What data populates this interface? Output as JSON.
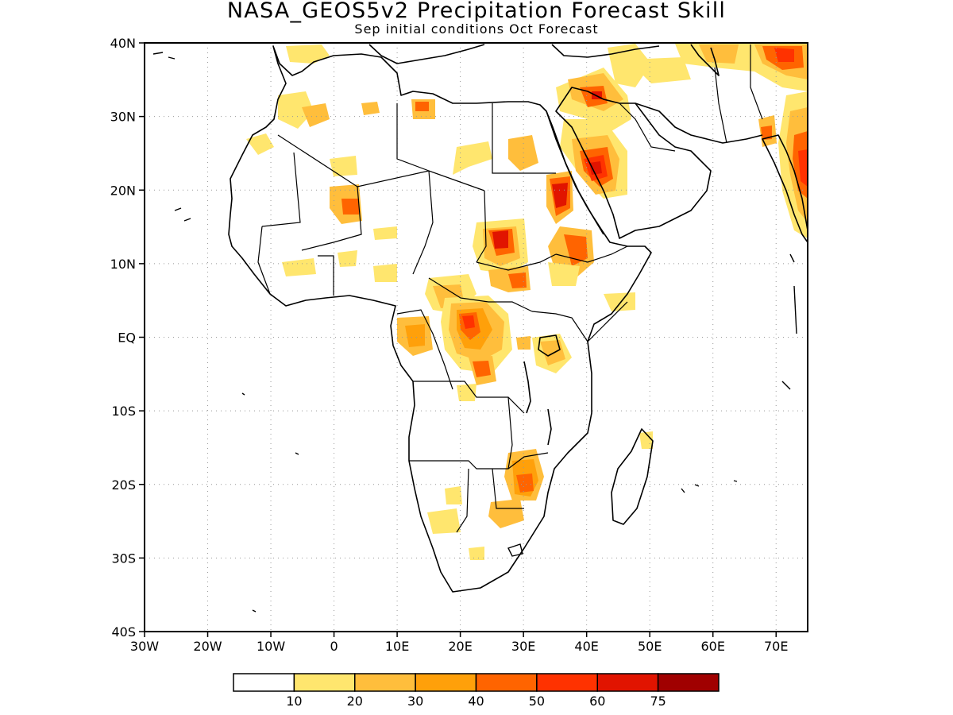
{
  "title": "NASA_GEOS5v2 Precipitation Forecast Skill",
  "subtitle": "Sep initial conditions  Oct Forecast",
  "map": {
    "lon_range": [
      -30,
      75
    ],
    "lat_range": [
      -40,
      40
    ],
    "lat_ticks": [
      "40N",
      "30N",
      "20N",
      "10N",
      "EQ",
      "10S",
      "20S",
      "30S",
      "40S"
    ],
    "lon_ticks": [
      "30W",
      "20W",
      "10W",
      "0",
      "10E",
      "20E",
      "30E",
      "40E",
      "50E",
      "60E",
      "70E"
    ],
    "gridlines": "dotted",
    "colors": {
      "land_outline": "#000000",
      "background": "#ffffff"
    }
  },
  "colorbar": {
    "labels": [
      "10",
      "20",
      "30",
      "40",
      "50",
      "60",
      "75"
    ],
    "colors": [
      "#ffffff",
      "#ffe66e",
      "#ffbe3c",
      "#ffa00a",
      "#ff6400",
      "#ff3200",
      "#e11400",
      "#a00000"
    ]
  },
  "skill_regions": [
    {
      "lon": 40.5,
      "lat": 22.5,
      "level": 6
    },
    {
      "lon": 34.5,
      "lat": 19.5,
      "level": 6
    },
    {
      "lon": 25.5,
      "lat": 13.5,
      "level": 6
    },
    {
      "lon": 72.5,
      "lat": 22.5,
      "level": 6
    },
    {
      "lon": 41.0,
      "lat": 32.5,
      "level": 5
    },
    {
      "lon": 20.5,
      "lat": 2.0,
      "level": 5
    },
    {
      "lon": 3.5,
      "lat": 17.0,
      "level": 5
    },
    {
      "lon": 70.0,
      "lat": 38.5,
      "level": 5
    },
    {
      "lon": 13.0,
      "lat": 31.5,
      "level": 4
    },
    {
      "lon": 36.5,
      "lat": 12.5,
      "level": 4
    },
    {
      "lon": 28.5,
      "lat": 8.0,
      "level": 4
    },
    {
      "lon": 28.5,
      "lat": -20.5,
      "level": 4
    }
  ]
}
